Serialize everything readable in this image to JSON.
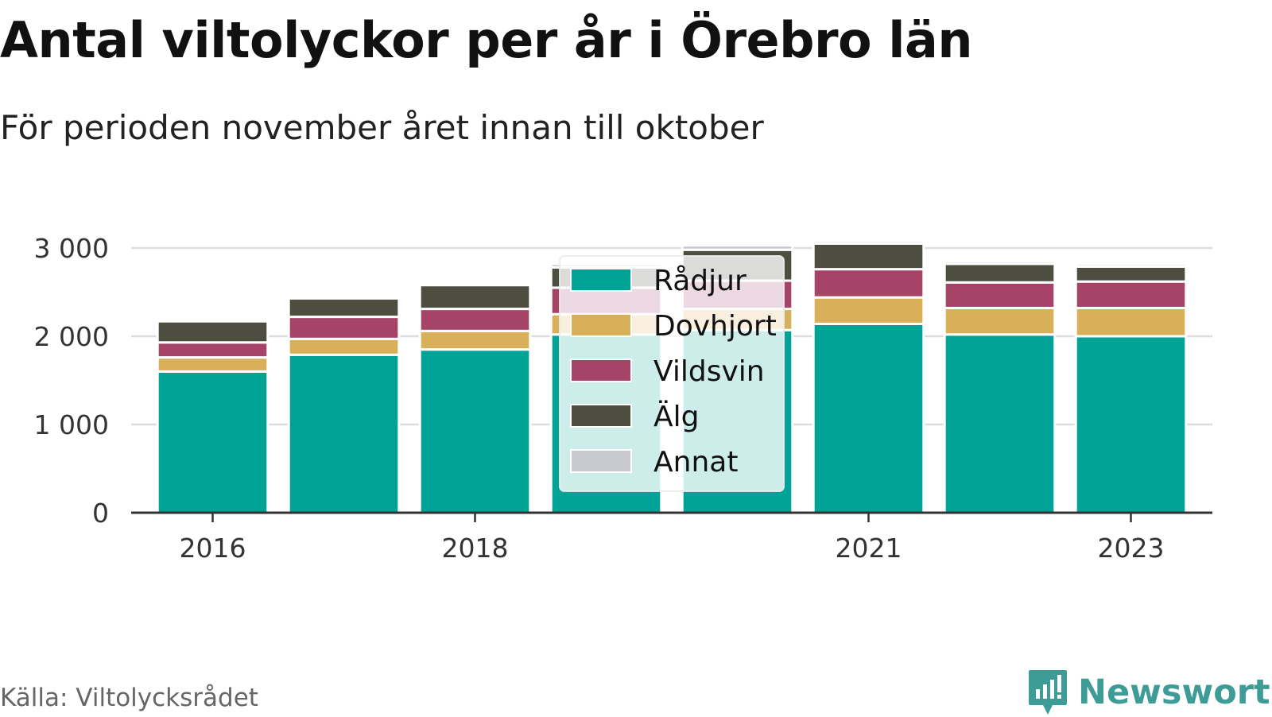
{
  "header": {
    "title": "Antal viltolyckor per år i Örebro län",
    "subtitle": "För perioden november året innan till oktober"
  },
  "footer": {
    "source": "Källa: Viltolycksrådet",
    "brand": "Newsworthy",
    "brand_color": "#3e9c96"
  },
  "chart_data": {
    "type": "bar",
    "stacked": true,
    "title": "Antal viltolyckor per år i Örebro län",
    "subtitle": "För perioden november året innan till oktober",
    "categories": [
      "2016",
      "2017",
      "2018",
      "2019",
      "2020",
      "2021",
      "2022",
      "2023"
    ],
    "x_tick_labels": [
      "2016",
      "",
      "2018",
      "",
      "",
      "2021",
      "",
      "2023"
    ],
    "series": [
      {
        "name": "Rådjur",
        "color": "#00a396",
        "values": [
          1600,
          1790,
          1850,
          2020,
          2070,
          2140,
          2020,
          2000
        ]
      },
      {
        "name": "Dovhjort",
        "color": "#d9b05a",
        "values": [
          160,
          180,
          210,
          230,
          240,
          300,
          300,
          320
        ]
      },
      {
        "name": "Vildsvin",
        "color": "#a64468",
        "values": [
          170,
          250,
          250,
          300,
          320,
          320,
          290,
          300
        ]
      },
      {
        "name": "Älg",
        "color": "#4e4e40",
        "values": [
          240,
          210,
          270,
          230,
          350,
          290,
          210,
          170
        ]
      },
      {
        "name": "Annat",
        "color": "#c8c8d0",
        "values": [
          10,
          20,
          20,
          40,
          50,
          30,
          30,
          30
        ]
      }
    ],
    "ylim": [
      0,
      3000
    ],
    "yticks": [
      0,
      1000,
      2000,
      3000
    ],
    "ytick_labels": [
      "0",
      "1 000",
      "2 000",
      "3 000"
    ],
    "xlabel": "",
    "ylabel": "",
    "grid": true,
    "legend_position": "center-left"
  }
}
